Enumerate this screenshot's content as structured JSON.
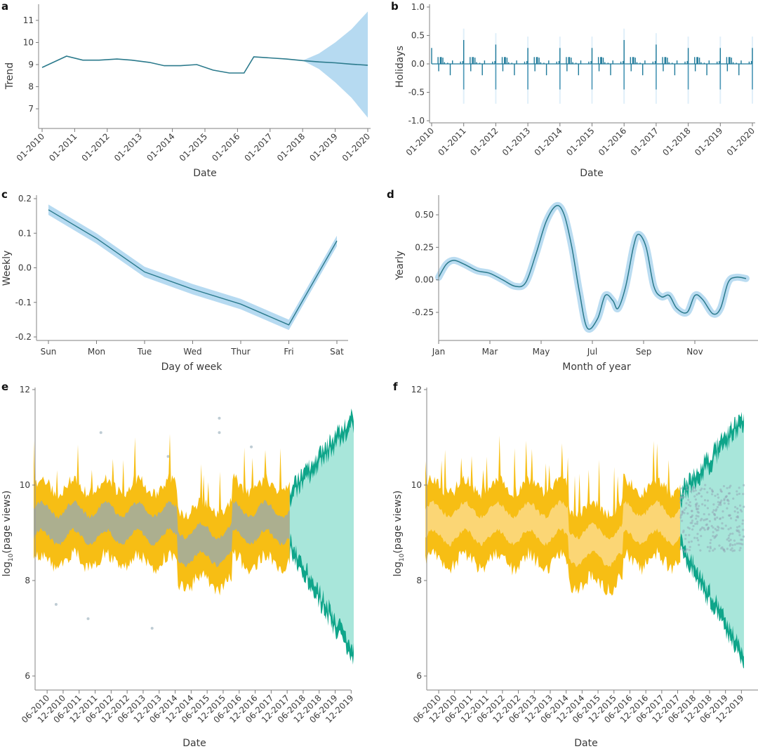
{
  "colors": {
    "trend_line": "#2b7a8c",
    "band_blue": "#a9d3ee",
    "holiday_bar": "#1f7a9a",
    "uncertainty_yellow": "#f7be14",
    "yellow_light": "#fbd77a",
    "obs_grey": "#93aab8",
    "forecast_teal_dark": "#0fa58a",
    "forecast_teal_light": "#a8e6da"
  },
  "chart_data": [
    {
      "panel": "a",
      "type": "line",
      "title": "",
      "xlabel": "Date",
      "ylabel": "Trend",
      "xticks": [
        "01-2010",
        "01-2011",
        "01-2012",
        "01-2013",
        "01-2014",
        "01-2015",
        "01-2016",
        "01-2017",
        "01-2018",
        "01-2019",
        "01-2020"
      ],
      "yticks": [
        "7",
        "8",
        "9",
        "10",
        "11"
      ],
      "xlim": [
        2010.0,
        2020.0
      ],
      "ylim": [
        6.3,
        11.6
      ],
      "series": [
        {
          "name": "trend",
          "x": [
            2010.0,
            2010.75,
            2011.25,
            2011.75,
            2012.3,
            2012.75,
            2013.3,
            2013.75,
            2014.25,
            2014.75,
            2015.25,
            2015.75,
            2016.2,
            2016.5,
            2017.0,
            2017.5,
            2018.0,
            2018.5,
            2019.0,
            2019.5,
            2020.0
          ],
          "y": [
            8.87,
            9.38,
            9.2,
            9.2,
            9.25,
            9.2,
            9.1,
            8.95,
            8.95,
            9.0,
            8.75,
            8.62,
            8.62,
            9.35,
            9.3,
            9.25,
            9.18,
            9.12,
            9.08,
            9.02,
            8.97
          ]
        },
        {
          "name": "uncertainty_upper",
          "x": [
            2018.0,
            2018.5,
            2019.0,
            2019.5,
            2020.0
          ],
          "y": [
            9.18,
            9.5,
            10.0,
            10.6,
            11.4
          ]
        },
        {
          "name": "uncertainty_lower",
          "x": [
            2018.0,
            2018.5,
            2019.0,
            2019.5,
            2020.0
          ],
          "y": [
            9.18,
            8.8,
            8.2,
            7.5,
            6.6
          ]
        }
      ]
    },
    {
      "panel": "b",
      "type": "bar",
      "title": "",
      "xlabel": "Date",
      "ylabel": "Holidays",
      "xticks": [
        "01-2010",
        "01-2011",
        "01-2012",
        "01-2013",
        "01-2014",
        "01-2015",
        "01-2016",
        "01-2017",
        "01-2018",
        "01-2019",
        "01-2020"
      ],
      "yticks": [
        "-1.0",
        "-0.5",
        "0.0",
        "0.5",
        "1.0"
      ],
      "xlim": [
        2010.0,
        2020.0
      ],
      "ylim": [
        -1.05,
        1.05
      ],
      "yearly_pattern": {
        "offsets": [
          0.0,
          0.2,
          0.22,
          0.27,
          0.3,
          0.35,
          0.4,
          0.5,
          0.58,
          0.65,
          0.9,
          0.97
        ],
        "values": [
          0.28,
          0.12,
          -0.13,
          0.12,
          0.12,
          0.11,
          0.03,
          0.02,
          -0.2,
          0.06,
          0.04,
          0.05
        ],
        "year_start_negative": -0.45
      }
    },
    {
      "panel": "c",
      "type": "line",
      "title": "",
      "xlabel": "Day of week",
      "ylabel": "Weekly",
      "categories": [
        "Sun",
        "Mon",
        "Tue",
        "Wed",
        "Thur",
        "Fri",
        "Sat"
      ],
      "yticks": [
        "-0.2",
        "-0.1",
        "0.0",
        "0.1",
        "0.2"
      ],
      "ylim": [
        -0.21,
        0.21
      ],
      "values": [
        0.168,
        0.085,
        -0.012,
        -0.062,
        -0.105,
        -0.165,
        0.078
      ],
      "band_halfwidth": 0.015
    },
    {
      "panel": "d",
      "type": "line",
      "title": "",
      "xlabel": "Month of year",
      "ylabel": "Yearly",
      "xticks": [
        "Jan",
        "Mar",
        "May",
        "Jul",
        "Sep",
        "Nov"
      ],
      "yticks": [
        "-0.25",
        "0.00",
        "0.25",
        "0.50"
      ],
      "xlim_months": [
        0,
        12
      ],
      "ylim": [
        -0.47,
        0.65
      ],
      "x": [
        0,
        0.3,
        0.6,
        1.0,
        1.5,
        2.0,
        2.5,
        3.0,
        3.4,
        3.8,
        4.2,
        4.6,
        4.9,
        5.2,
        5.5,
        5.8,
        6.2,
        6.5,
        6.8,
        7.0,
        7.3,
        7.6,
        7.8,
        8.1,
        8.4,
        8.7,
        9.0,
        9.3,
        9.7,
        10.0,
        10.3,
        10.7,
        11.0,
        11.3,
        11.6,
        12.0
      ],
      "y": [
        0.02,
        0.12,
        0.15,
        0.12,
        0.07,
        0.05,
        0.0,
        -0.05,
        -0.02,
        0.2,
        0.45,
        0.57,
        0.5,
        0.25,
        -0.1,
        -0.37,
        -0.3,
        -0.12,
        -0.16,
        -0.22,
        -0.05,
        0.25,
        0.35,
        0.25,
        -0.05,
        -0.13,
        -0.12,
        -0.22,
        -0.25,
        -0.12,
        -0.15,
        -0.26,
        -0.22,
        -0.02,
        0.02,
        0.01
      ],
      "band_halfwidth": 0.025
    },
    {
      "panel": "e",
      "type": "area",
      "title": "",
      "xlabel": "Date",
      "ylabel": "log10(page views)",
      "xticks": [
        "06-2010",
        "12-2010",
        "06-2011",
        "12-2011",
        "06-2012",
        "12-2012",
        "06-2013",
        "12-2013",
        "06-2014",
        "12-2014",
        "06-2015",
        "12-2015",
        "06-2016",
        "12-2016",
        "06-2017",
        "12-2017",
        "06-2018",
        "12-2018",
        "06-2019",
        "12-2019"
      ],
      "yticks": [
        "6",
        "8",
        "10",
        "12"
      ],
      "xlim": [
        2010.0,
        2020.0
      ],
      "ylim": [
        5.7,
        12.0
      ],
      "observed_range": [
        2010.0,
        2018.0
      ],
      "forecast_range": [
        2018.0,
        2020.0
      ],
      "observed_band": {
        "center": 9.2,
        "inner_halfwidth": 0.4,
        "outer_halfwidth": 0.65
      },
      "forecast_band": {
        "start_upper": 9.9,
        "start_lower": 8.6,
        "end_upper": 11.5,
        "end_lower": 6.3
      },
      "observed_points_overlay": true
    },
    {
      "panel": "f",
      "type": "area",
      "title": "",
      "xlabel": "Date",
      "ylabel": "log10(page views)",
      "xticks": [
        "06-2010",
        "12-2010",
        "06-2011",
        "12-2011",
        "06-2012",
        "12-2012",
        "06-2013",
        "12-2013",
        "06-2014",
        "12-2014",
        "06-2015",
        "12-2015",
        "06-2016",
        "12-2016",
        "06-2017",
        "12-2017",
        "06-2018",
        "12-2018",
        "06-2019",
        "12-2019"
      ],
      "yticks": [
        "6",
        "8",
        "10",
        "12"
      ],
      "xlim": [
        2010.0,
        2020.0
      ],
      "ylim": [
        5.7,
        12.0
      ],
      "observed_range": [
        2010.0,
        2018.0
      ],
      "forecast_range": [
        2018.0,
        2020.0
      ],
      "observed_band": {
        "center": 9.2,
        "inner_halfwidth": 0.4,
        "outer_halfwidth": 0.65
      },
      "forecast_band": {
        "start_upper": 9.9,
        "start_lower": 8.6,
        "end_upper": 11.5,
        "end_lower": 6.3
      },
      "observed_points_overlay": "forecast-period"
    }
  ],
  "panels": {
    "a": {
      "letter": "a",
      "xlabel": "Date",
      "ylabel": "Trend"
    },
    "b": {
      "letter": "b",
      "xlabel": "Date",
      "ylabel": "Holidays"
    },
    "c": {
      "letter": "c",
      "xlabel": "Day of week",
      "ylabel": "Weekly"
    },
    "d": {
      "letter": "d",
      "xlabel": "Month of year",
      "ylabel": "Yearly"
    },
    "e": {
      "letter": "e",
      "xlabel": "Date",
      "ylabel_main": "log",
      "ylabel_sub": "10",
      "ylabel_rest": "(page views)"
    },
    "f": {
      "letter": "f",
      "xlabel": "Date",
      "ylabel_main": "log",
      "ylabel_sub": "10",
      "ylabel_rest": "(page views)"
    }
  }
}
